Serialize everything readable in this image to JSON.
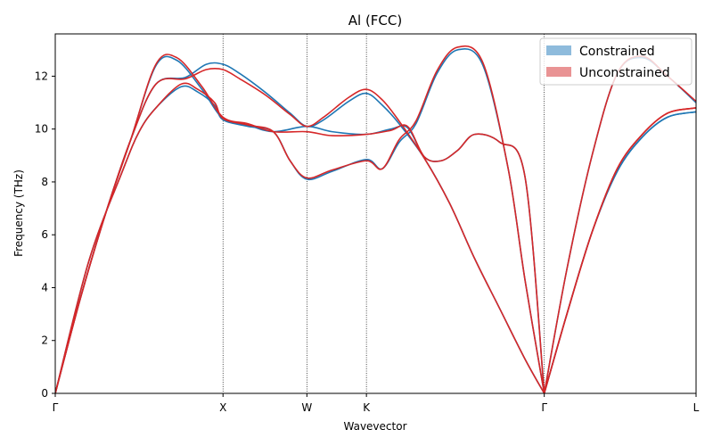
{
  "chart_data": {
    "type": "line",
    "title": "Al (FCC)",
    "xlabel": "Wavevector",
    "ylabel": "Frequency (THz)",
    "xlim": [
      0,
      7.64
    ],
    "ylim": [
      0,
      13.6
    ],
    "yticks": [
      0,
      2,
      4,
      6,
      8,
      10,
      12
    ],
    "high_symmetry_points": [
      {
        "label": "Γ",
        "x": 0
      },
      {
        "label": "X",
        "x": 2.0
      },
      {
        "label": "W",
        "x": 3.0
      },
      {
        "label": "K",
        "x": 3.71
      },
      {
        "label": "Γ",
        "x": 5.83
      },
      {
        "label": "L",
        "x": 7.64
      }
    ],
    "legend": {
      "placement": "top-right",
      "entries": [
        {
          "label": "Constrained",
          "color": "#8ebbdc"
        },
        {
          "label": "Unconstrained",
          "color": "#e99394"
        }
      ]
    },
    "series": [
      {
        "name": "Constrained",
        "color": "#1f77b4",
        "branches": [
          [
            [
              0,
              0
            ],
            [
              0.3,
              3.6
            ],
            [
              0.6,
              6.8
            ],
            [
              0.9,
              9.6
            ],
            [
              1.2,
              11.7
            ],
            [
              1.55,
              11.95
            ],
            [
              1.8,
              12.45
            ],
            [
              2.0,
              12.45
            ],
            [
              2.2,
              12.1
            ],
            [
              2.5,
              11.4
            ],
            [
              2.8,
              10.6
            ],
            [
              3.0,
              10.1
            ],
            [
              3.2,
              10.35
            ],
            [
              3.5,
              11.05
            ],
            [
              3.71,
              11.35
            ],
            [
              3.9,
              10.9
            ],
            [
              4.1,
              10.2
            ],
            [
              4.4,
              8.9
            ],
            [
              4.7,
              7.2
            ],
            [
              5.0,
              5.1
            ],
            [
              5.3,
              3.2
            ],
            [
              5.6,
              1.3
            ],
            [
              5.83,
              0
            ],
            [
              6.1,
              3.0
            ],
            [
              6.4,
              6.1
            ],
            [
              6.7,
              8.4
            ],
            [
              7.0,
              9.7
            ],
            [
              7.3,
              10.45
            ],
            [
              7.64,
              10.65
            ]
          ],
          [
            [
              0,
              0
            ],
            [
              0.3,
              3.6
            ],
            [
              0.6,
              6.8
            ],
            [
              0.9,
              9.6
            ],
            [
              1.2,
              12.4
            ],
            [
              1.45,
              12.6
            ],
            [
              1.75,
              11.5
            ],
            [
              2.0,
              10.4
            ],
            [
              2.3,
              10.15
            ],
            [
              2.6,
              9.9
            ],
            [
              3.0,
              10.1
            ],
            [
              3.3,
              9.9
            ],
            [
              3.71,
              9.8
            ],
            [
              4.0,
              10.0
            ],
            [
              4.2,
              10.05
            ],
            [
              4.4,
              8.95
            ],
            [
              4.6,
              8.8
            ],
            [
              4.8,
              9.2
            ],
            [
              5.0,
              9.8
            ],
            [
              5.3,
              9.5
            ],
            [
              5.6,
              8.2
            ],
            [
              5.83,
              0
            ],
            [
              6.1,
              3.0
            ],
            [
              6.4,
              6.1
            ],
            [
              6.7,
              8.4
            ],
            [
              7.0,
              9.7
            ],
            [
              7.3,
              10.45
            ],
            [
              7.64,
              10.65
            ]
          ],
          [
            [
              0,
              0
            ],
            [
              0.4,
              5.0
            ],
            [
              0.8,
              8.4
            ],
            [
              1.0,
              9.9
            ],
            [
              1.2,
              10.8
            ],
            [
              1.5,
              11.6
            ],
            [
              1.7,
              11.4
            ],
            [
              1.9,
              10.9
            ],
            [
              2.0,
              10.35
            ],
            [
              2.3,
              10.1
            ],
            [
              2.6,
              9.9
            ],
            [
              2.8,
              8.8
            ],
            [
              3.0,
              8.1
            ],
            [
              3.3,
              8.4
            ],
            [
              3.71,
              8.85
            ],
            [
              3.9,
              8.5
            ],
            [
              4.1,
              9.5
            ],
            [
              4.3,
              10.2
            ],
            [
              4.55,
              12.1
            ],
            [
              4.8,
              13.0
            ],
            [
              5.1,
              12.4
            ],
            [
              5.4,
              8.5
            ],
            [
              5.6,
              4.3
            ],
            [
              5.83,
              0
            ],
            [
              6.1,
              4.7
            ],
            [
              6.4,
              9.0
            ],
            [
              6.7,
              12.1
            ],
            [
              7.0,
              12.7
            ],
            [
              7.3,
              12.0
            ],
            [
              7.64,
              11.0
            ]
          ]
        ]
      },
      {
        "name": "Unconstrained",
        "color": "#d62728",
        "branches": [
          [
            [
              0,
              0
            ],
            [
              0.3,
              3.6
            ],
            [
              0.6,
              6.8
            ],
            [
              0.9,
              9.6
            ],
            [
              1.2,
              11.7
            ],
            [
              1.55,
              11.9
            ],
            [
              1.8,
              12.25
            ],
            [
              2.0,
              12.25
            ],
            [
              2.2,
              11.9
            ],
            [
              2.5,
              11.3
            ],
            [
              2.8,
              10.55
            ],
            [
              3.0,
              10.1
            ],
            [
              3.2,
              10.45
            ],
            [
              3.5,
              11.2
            ],
            [
              3.71,
              11.5
            ],
            [
              3.9,
              11.1
            ],
            [
              4.1,
              10.3
            ],
            [
              4.4,
              8.9
            ],
            [
              4.7,
              7.2
            ],
            [
              5.0,
              5.1
            ],
            [
              5.3,
              3.2
            ],
            [
              5.6,
              1.3
            ],
            [
              5.83,
              0
            ],
            [
              6.1,
              3.0
            ],
            [
              6.4,
              6.1
            ],
            [
              6.7,
              8.5
            ],
            [
              7.0,
              9.8
            ],
            [
              7.3,
              10.6
            ],
            [
              7.64,
              10.8
            ]
          ],
          [
            [
              0,
              0
            ],
            [
              0.3,
              3.6
            ],
            [
              0.6,
              6.8
            ],
            [
              0.9,
              9.6
            ],
            [
              1.2,
              12.45
            ],
            [
              1.45,
              12.7
            ],
            [
              1.75,
              11.6
            ],
            [
              2.0,
              10.45
            ],
            [
              2.3,
              10.2
            ],
            [
              2.6,
              9.9
            ],
            [
              3.0,
              9.9
            ],
            [
              3.3,
              9.75
            ],
            [
              3.71,
              9.8
            ],
            [
              4.0,
              9.95
            ],
            [
              4.2,
              10.1
            ],
            [
              4.4,
              8.95
            ],
            [
              4.6,
              8.8
            ],
            [
              4.8,
              9.2
            ],
            [
              5.0,
              9.8
            ],
            [
              5.3,
              9.5
            ],
            [
              5.6,
              8.2
            ],
            [
              5.83,
              0
            ],
            [
              6.1,
              3.0
            ],
            [
              6.4,
              6.1
            ],
            [
              6.7,
              8.5
            ],
            [
              7.0,
              9.8
            ],
            [
              7.3,
              10.6
            ],
            [
              7.64,
              10.8
            ]
          ],
          [
            [
              0,
              0
            ],
            [
              0.4,
              5.0
            ],
            [
              0.8,
              8.4
            ],
            [
              1.0,
              9.9
            ],
            [
              1.2,
              10.8
            ],
            [
              1.5,
              11.7
            ],
            [
              1.7,
              11.5
            ],
            [
              1.9,
              11.0
            ],
            [
              2.0,
              10.4
            ],
            [
              2.3,
              10.15
            ],
            [
              2.6,
              9.9
            ],
            [
              2.8,
              8.8
            ],
            [
              3.0,
              8.15
            ],
            [
              3.3,
              8.45
            ],
            [
              3.71,
              8.8
            ],
            [
              3.9,
              8.5
            ],
            [
              4.1,
              9.6
            ],
            [
              4.3,
              10.3
            ],
            [
              4.55,
              12.2
            ],
            [
              4.8,
              13.1
            ],
            [
              5.1,
              12.5
            ],
            [
              5.4,
              8.5
            ],
            [
              5.6,
              4.3
            ],
            [
              5.83,
              0
            ],
            [
              6.1,
              4.7
            ],
            [
              6.4,
              9.0
            ],
            [
              6.7,
              12.1
            ],
            [
              7.0,
              12.75
            ],
            [
              7.3,
              12.0
            ],
            [
              7.64,
              11.05
            ]
          ]
        ]
      }
    ]
  }
}
